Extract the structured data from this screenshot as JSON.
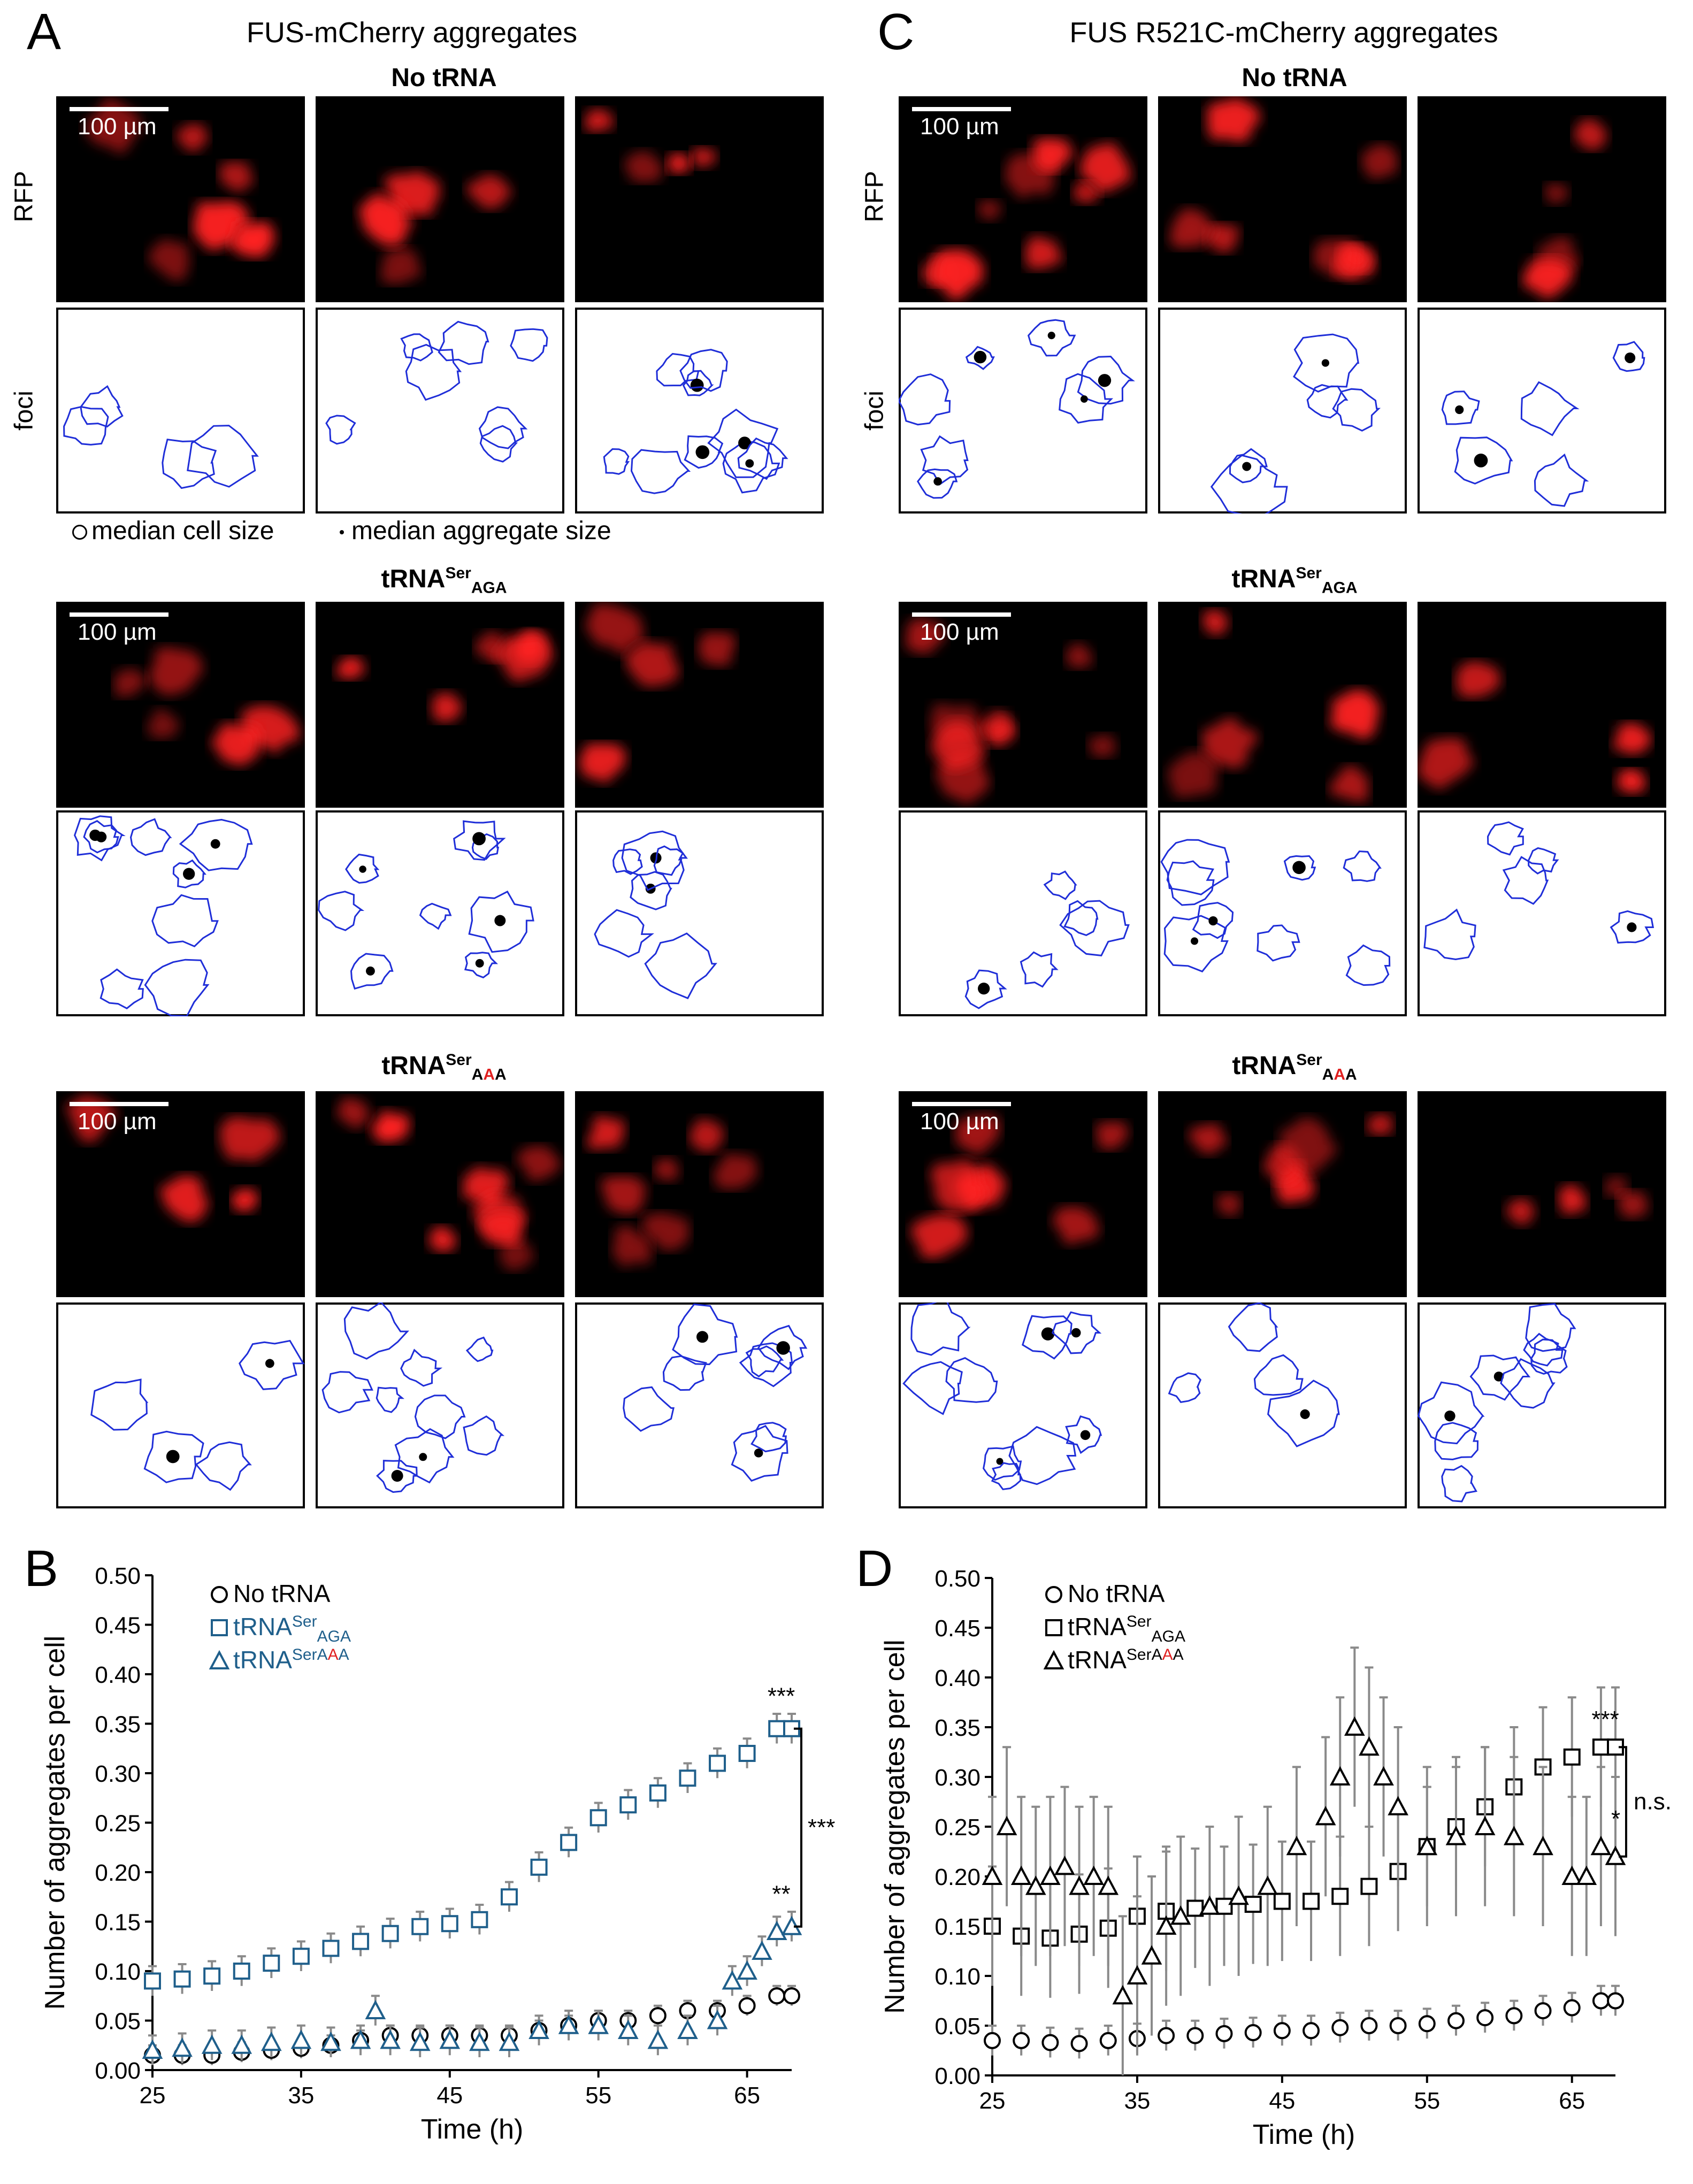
{
  "panels": {
    "A": {
      "letter": "A",
      "title": "FUS-mCherry aggregates"
    },
    "C": {
      "letter": "C",
      "title": "FUS R521C-mCherry aggregates"
    },
    "B": {
      "letter": "B"
    },
    "D": {
      "letter": "D"
    }
  },
  "rows": [
    {
      "title": "No tRNA",
      "sup": "",
      "sub": ""
    },
    {
      "title": "tRNA",
      "sup": "Ser",
      "sub": "AGA"
    },
    {
      "title": "tRNA",
      "sup": "Ser",
      "sub_parts": [
        "A",
        "A",
        "A"
      ]
    }
  ],
  "side_labels": {
    "rfp": "RFP",
    "foci": "foci"
  },
  "scale_bar": "100 µm",
  "legend_note": {
    "cell": "median cell size",
    "aggregate": "median aggregate size"
  },
  "colors": {
    "rfp_bg": "#000000",
    "rfp_blob": "#ff2020",
    "outline": "#1f2ed8",
    "blue_series": "#1f5f8b",
    "black_series": "#000000",
    "error": "#8a8a8a",
    "mut_red": "#e02020"
  },
  "chart_data": [
    {
      "type": "scatter",
      "panel": "B",
      "xlabel": "Time (h)",
      "ylabel": "Number of aggregates per cell",
      "xlim": [
        25,
        68
      ],
      "ylim": [
        0,
        0.5
      ],
      "xticks": [
        25,
        35,
        45,
        55,
        65
      ],
      "yticks": [
        0,
        0.05,
        0.1,
        0.15,
        0.2,
        0.25,
        0.3,
        0.35,
        0.4,
        0.45,
        0.5
      ],
      "ytick_labels": [
        "0.00",
        "0.05",
        "0.10",
        "0.15",
        "0.20",
        "0.25",
        "0.30",
        "0.35",
        "0.40",
        "0.45",
        "0.50"
      ],
      "legend": [
        {
          "name": "No tRNA",
          "marker": "circle",
          "color": "#000000"
        },
        {
          "name": "tRNA",
          "sup": "Ser",
          "sub": "AGA",
          "marker": "square",
          "color": "#1f5f8b"
        },
        {
          "name": "tRNA",
          "sup": "Ser",
          "sub_parts": [
            "A",
            "A",
            "A"
          ],
          "marker": "triangle",
          "color": "#1f5f8b"
        }
      ],
      "series": [
        {
          "name": "No tRNA",
          "marker": "circle",
          "color": "#000000",
          "x": [
            25,
            27,
            29,
            31,
            33,
            35,
            37,
            39,
            41,
            43,
            45,
            47,
            49,
            51,
            53,
            55,
            57,
            59,
            61,
            63,
            65,
            67,
            68
          ],
          "y": [
            0.015,
            0.015,
            0.015,
            0.018,
            0.02,
            0.022,
            0.025,
            0.03,
            0.035,
            0.035,
            0.035,
            0.035,
            0.035,
            0.04,
            0.045,
            0.05,
            0.05,
            0.055,
            0.06,
            0.06,
            0.065,
            0.075,
            0.075
          ],
          "err": 0.01
        },
        {
          "name": "tRNA Ser AGA",
          "marker": "square",
          "color": "#1f5f8b",
          "x": [
            25,
            27,
            29,
            31,
            33,
            35,
            37,
            39,
            41,
            43,
            45,
            47,
            49,
            51,
            53,
            55,
            57,
            59,
            61,
            63,
            65,
            67,
            68
          ],
          "y": [
            0.09,
            0.092,
            0.095,
            0.1,
            0.108,
            0.115,
            0.123,
            0.13,
            0.138,
            0.145,
            0.148,
            0.152,
            0.175,
            0.205,
            0.23,
            0.255,
            0.268,
            0.28,
            0.295,
            0.31,
            0.32,
            0.345,
            0.345
          ],
          "err": 0.015
        },
        {
          "name": "tRNA Ser AAA",
          "marker": "triangle",
          "color": "#1f5f8b",
          "x": [
            25,
            27,
            29,
            31,
            33,
            35,
            37,
            39,
            40,
            41,
            43,
            45,
            47,
            49,
            51,
            53,
            55,
            57,
            59,
            61,
            63,
            64,
            65,
            66,
            67,
            68
          ],
          "y": [
            0.02,
            0.022,
            0.025,
            0.025,
            0.028,
            0.03,
            0.028,
            0.03,
            0.06,
            0.03,
            0.028,
            0.03,
            0.028,
            0.028,
            0.04,
            0.045,
            0.045,
            0.04,
            0.03,
            0.04,
            0.05,
            0.09,
            0.1,
            0.12,
            0.14,
            0.145
          ],
          "err": 0.015
        }
      ],
      "annotations": [
        {
          "text": "***",
          "x": 67,
          "y": 0.37
        },
        {
          "text": "***",
          "bracket": [
            0.345,
            0.145
          ]
        },
        {
          "text": "**",
          "x": 67,
          "y": 0.17
        }
      ]
    },
    {
      "type": "scatter",
      "panel": "D",
      "xlabel": "Time (h)",
      "ylabel": "Number of aggregates per cell",
      "xlim": [
        25,
        68
      ],
      "ylim": [
        0,
        0.5
      ],
      "xticks": [
        25,
        35,
        45,
        55,
        65
      ],
      "yticks": [
        0,
        0.05,
        0.1,
        0.15,
        0.2,
        0.25,
        0.3,
        0.35,
        0.4,
        0.45,
        0.5
      ],
      "ytick_labels": [
        "0.00",
        "0.05",
        "0.10",
        "0.15",
        "0.20",
        "0.25",
        "0.30",
        "0.35",
        "0.40",
        "0.45",
        "0.50"
      ],
      "legend": [
        {
          "name": "No tRNA",
          "marker": "circle",
          "color": "#000000"
        },
        {
          "name": "tRNA",
          "sup": "Ser",
          "sub": "AGA",
          "marker": "square",
          "color": "#000000"
        },
        {
          "name": "tRNA",
          "sup": "Ser",
          "sub_parts": [
            "A",
            "A",
            "A"
          ],
          "marker": "triangle",
          "color": "#000000"
        }
      ],
      "series": [
        {
          "name": "No tRNA",
          "marker": "circle",
          "color": "#000000",
          "x": [
            25,
            27,
            29,
            31,
            33,
            35,
            37,
            39,
            41,
            43,
            45,
            47,
            49,
            51,
            53,
            55,
            57,
            59,
            61,
            63,
            65,
            67,
            68
          ],
          "y": [
            0.035,
            0.035,
            0.033,
            0.032,
            0.035,
            0.037,
            0.04,
            0.04,
            0.042,
            0.043,
            0.045,
            0.045,
            0.048,
            0.05,
            0.05,
            0.052,
            0.055,
            0.058,
            0.06,
            0.065,
            0.068,
            0.075,
            0.075
          ],
          "err": 0.015
        },
        {
          "name": "tRNA Ser AGA",
          "marker": "square",
          "color": "#000000",
          "x": [
            25,
            27,
            29,
            31,
            33,
            35,
            37,
            39,
            41,
            43,
            45,
            47,
            49,
            51,
            53,
            55,
            57,
            59,
            61,
            63,
            65,
            67,
            68
          ],
          "y": [
            0.15,
            0.14,
            0.138,
            0.142,
            0.148,
            0.16,
            0.165,
            0.168,
            0.17,
            0.172,
            0.175,
            0.175,
            0.18,
            0.19,
            0.205,
            0.23,
            0.25,
            0.27,
            0.29,
            0.31,
            0.32,
            0.33,
            0.33
          ],
          "err": 0.06
        },
        {
          "name": "tRNA Ser AAA",
          "marker": "triangle",
          "color": "#000000",
          "x": [
            25,
            26,
            27,
            28,
            29,
            30,
            31,
            32,
            33,
            34,
            35,
            36,
            37,
            38,
            40,
            42,
            44,
            46,
            48,
            49,
            50,
            51,
            52,
            53,
            55,
            57,
            59,
            61,
            63,
            65,
            66,
            67,
            68
          ],
          "y": [
            0.2,
            0.25,
            0.2,
            0.19,
            0.2,
            0.21,
            0.19,
            0.2,
            0.19,
            0.08,
            0.1,
            0.12,
            0.15,
            0.16,
            0.17,
            0.18,
            0.19,
            0.23,
            0.26,
            0.3,
            0.35,
            0.33,
            0.3,
            0.27,
            0.23,
            0.24,
            0.25,
            0.24,
            0.23,
            0.2,
            0.2,
            0.23,
            0.22
          ],
          "err": 0.08
        }
      ],
      "annotations": [
        {
          "text": "***",
          "x": 67,
          "y": 0.35
        },
        {
          "text": "*",
          "bracket_inner": true
        },
        {
          "text": "n.s."
        }
      ]
    }
  ]
}
